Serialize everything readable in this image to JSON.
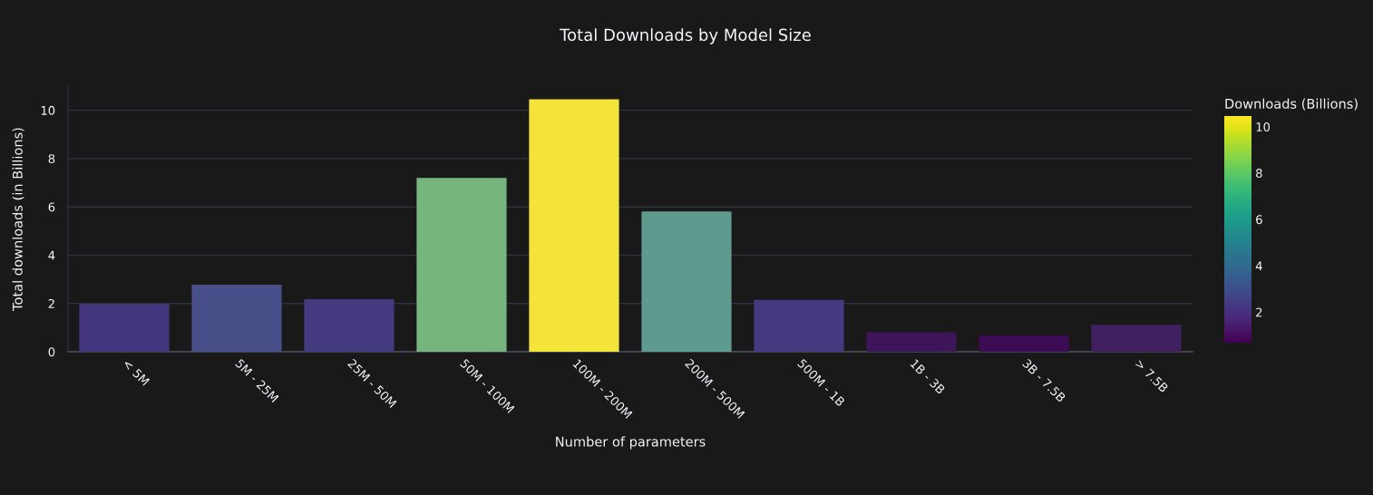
{
  "chart_data": {
    "type": "bar",
    "title": "Total Downloads by Model Size",
    "xlabel": "Number of parameters",
    "ylabel": "Total downloads (in Billions)",
    "categories": [
      "< 5M",
      "5M - 25M",
      "25M - 50M",
      "50M - 100M",
      "100M - 200M",
      "200M - 500M",
      "500M - 1B",
      "1B - 3B",
      "3B - 7.5B",
      "> 7.5B"
    ],
    "values": [
      1.98,
      2.78,
      2.18,
      7.2,
      10.46,
      5.81,
      2.15,
      0.81,
      0.68,
      1.12
    ],
    "colors": [
      "#45377f",
      "#484f88",
      "#443a80",
      "#77b57f",
      "#f4e43a",
      "#5e9a8e",
      "#453a80",
      "#3d1558",
      "#3b0c53",
      "#40205e"
    ],
    "ylim": [
      0,
      11
    ],
    "yticks": [
      0,
      2,
      4,
      6,
      8,
      10
    ],
    "grid": "y",
    "legend": false,
    "clabel": "Downloads (Billions)",
    "clim": [
      0.68,
      10.46
    ],
    "cticks": [
      2,
      4,
      6,
      8,
      10
    ]
  }
}
